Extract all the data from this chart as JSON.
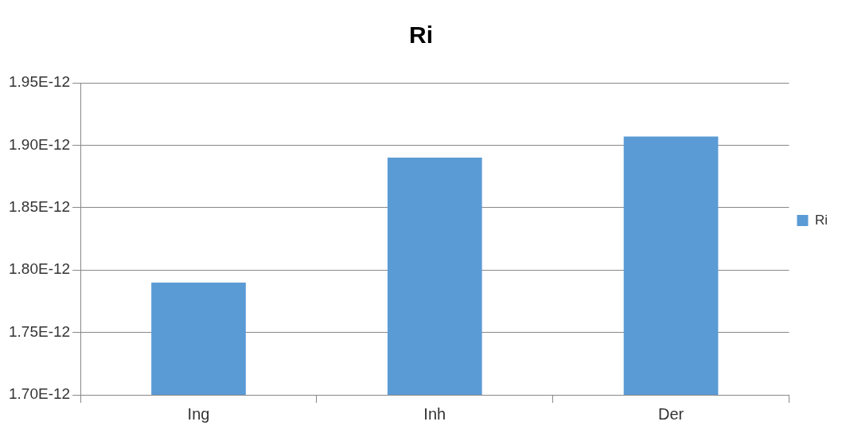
{
  "chart_data": {
    "type": "bar",
    "title": "Ri",
    "categories": [
      "Ing",
      "Inh",
      "Der"
    ],
    "series": [
      {
        "name": "Ri",
        "color": "#5b9bd5",
        "values": [
          1.79e-12,
          1.89e-12,
          1.907e-12
        ]
      }
    ],
    "ylim": [
      1.7e-12,
      1.95e-12
    ],
    "yticks": [
      {
        "value": 1.7e-12,
        "label": "1.70E-12"
      },
      {
        "value": 1.75e-12,
        "label": "1.75E-12"
      },
      {
        "value": 1.8e-12,
        "label": "1.80E-12"
      },
      {
        "value": 1.85e-12,
        "label": "1.85E-12"
      },
      {
        "value": 1.9e-12,
        "label": "1.90E-12"
      },
      {
        "value": 1.95e-12,
        "label": "1.95E-12"
      }
    ],
    "grid": "y",
    "legend": "right"
  }
}
